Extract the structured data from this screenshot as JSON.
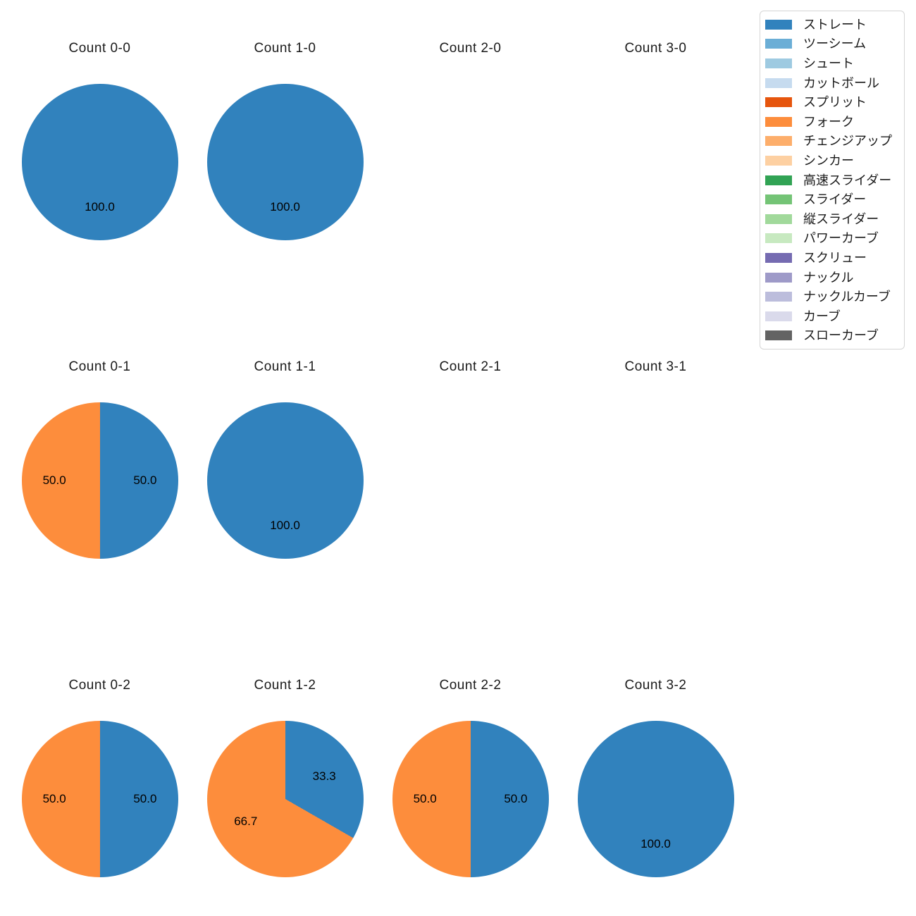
{
  "figure": {
    "background_color": "#ffffff",
    "text_color": "#1a1a1a",
    "pie_start_angle_deg": 90,
    "pie_direction": "clockwise",
    "pct_label_format": "%.1f"
  },
  "legend": {
    "items": [
      {
        "label": "ストレート",
        "color": "#3182bd"
      },
      {
        "label": "ツーシーム",
        "color": "#6baed6"
      },
      {
        "label": "シュート",
        "color": "#9ecae1"
      },
      {
        "label": "カットボール",
        "color": "#c6dbef"
      },
      {
        "label": "スプリット",
        "color": "#e6550d"
      },
      {
        "label": "フォーク",
        "color": "#fd8d3c"
      },
      {
        "label": "チェンジアップ",
        "color": "#fdae6b"
      },
      {
        "label": "シンカー",
        "color": "#fdd0a2"
      },
      {
        "label": "高速スライダー",
        "color": "#31a354"
      },
      {
        "label": "スライダー",
        "color": "#74c476"
      },
      {
        "label": "縦スライダー",
        "color": "#a1d99b"
      },
      {
        "label": "パワーカーブ",
        "color": "#c7e9c0"
      },
      {
        "label": "スクリュー",
        "color": "#756bb1"
      },
      {
        "label": "ナックル",
        "color": "#9e9ac8"
      },
      {
        "label": "ナックルカーブ",
        "color": "#bcbddc"
      },
      {
        "label": "カーブ",
        "color": "#dadaeb"
      },
      {
        "label": "スローカーブ",
        "color": "#636363"
      }
    ]
  },
  "chart_data": [
    {
      "type": "pie",
      "title": "Count 0-0",
      "row": 0,
      "col": 0,
      "labels": [
        "ストレート"
      ],
      "values": [
        100.0
      ],
      "pct_labels": [
        "100.0"
      ],
      "colors": [
        "#3182bd"
      ]
    },
    {
      "type": "pie",
      "title": "Count 1-0",
      "row": 0,
      "col": 1,
      "labels": [
        "ストレート"
      ],
      "values": [
        100.0
      ],
      "pct_labels": [
        "100.0"
      ],
      "colors": [
        "#3182bd"
      ]
    },
    {
      "type": "pie",
      "title": "Count 2-0",
      "row": 0,
      "col": 2,
      "labels": [],
      "values": [],
      "pct_labels": [],
      "colors": []
    },
    {
      "type": "pie",
      "title": "Count 3-0",
      "row": 0,
      "col": 3,
      "labels": [],
      "values": [],
      "pct_labels": [],
      "colors": []
    },
    {
      "type": "pie",
      "title": "Count 0-1",
      "row": 1,
      "col": 0,
      "labels": [
        "ストレート",
        "フォーク"
      ],
      "values": [
        50.0,
        50.0
      ],
      "pct_labels": [
        "50.0",
        "50.0"
      ],
      "colors": [
        "#3182bd",
        "#fd8d3c"
      ]
    },
    {
      "type": "pie",
      "title": "Count 1-1",
      "row": 1,
      "col": 1,
      "labels": [
        "ストレート"
      ],
      "values": [
        100.0
      ],
      "pct_labels": [
        "100.0"
      ],
      "colors": [
        "#3182bd"
      ]
    },
    {
      "type": "pie",
      "title": "Count 2-1",
      "row": 1,
      "col": 2,
      "labels": [],
      "values": [],
      "pct_labels": [],
      "colors": []
    },
    {
      "type": "pie",
      "title": "Count 3-1",
      "row": 1,
      "col": 3,
      "labels": [],
      "values": [],
      "pct_labels": [],
      "colors": []
    },
    {
      "type": "pie",
      "title": "Count 0-2",
      "row": 2,
      "col": 0,
      "labels": [
        "ストレート",
        "フォーク"
      ],
      "values": [
        50.0,
        50.0
      ],
      "pct_labels": [
        "50.0",
        "50.0"
      ],
      "colors": [
        "#3182bd",
        "#fd8d3c"
      ]
    },
    {
      "type": "pie",
      "title": "Count 1-2",
      "row": 2,
      "col": 1,
      "labels": [
        "ストレート",
        "フォーク"
      ],
      "values": [
        33.3,
        66.7
      ],
      "pct_labels": [
        "33.3",
        "66.7"
      ],
      "colors": [
        "#3182bd",
        "#fd8d3c"
      ]
    },
    {
      "type": "pie",
      "title": "Count 2-2",
      "row": 2,
      "col": 2,
      "labels": [
        "ストレート",
        "フォーク"
      ],
      "values": [
        50.0,
        50.0
      ],
      "pct_labels": [
        "50.0",
        "50.0"
      ],
      "colors": [
        "#3182bd",
        "#fd8d3c"
      ]
    },
    {
      "type": "pie",
      "title": "Count 3-2",
      "row": 2,
      "col": 3,
      "labels": [
        "ストレート"
      ],
      "values": [
        100.0
      ],
      "pct_labels": [
        "100.0"
      ],
      "colors": [
        "#3182bd"
      ]
    }
  ]
}
